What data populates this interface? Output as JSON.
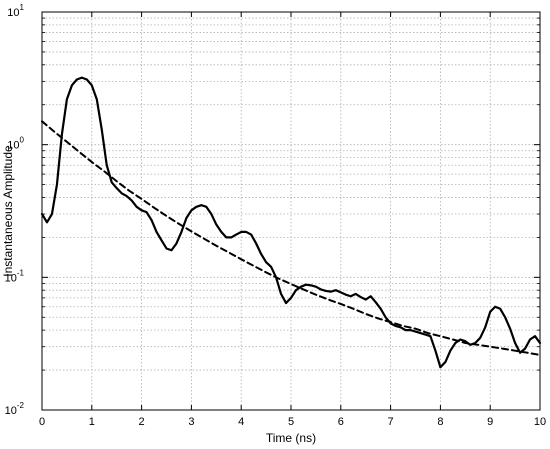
{
  "chart_data": {
    "type": "line",
    "xlabel": "Time (ns)",
    "ylabel": "Instantaneous Amplitude",
    "xlim": [
      0,
      10
    ],
    "ylim": [
      0.01,
      10
    ],
    "yscale": "log",
    "grid": true,
    "x_ticks": [
      0,
      1,
      2,
      3,
      4,
      5,
      6,
      7,
      8,
      9,
      10
    ],
    "y_ticks": [
      {
        "value": 0.01,
        "base": "10",
        "exp": "-2"
      },
      {
        "value": 0.1,
        "base": "10",
        "exp": "-1"
      },
      {
        "value": 1,
        "base": "10",
        "exp": "0"
      },
      {
        "value": 10,
        "base": "10",
        "exp": "1"
      }
    ],
    "series": [
      {
        "style": "solid",
        "x": [
          0,
          0.1,
          0.2,
          0.3,
          0.4,
          0.5,
          0.6,
          0.7,
          0.8,
          0.9,
          1.0,
          1.1,
          1.2,
          1.3,
          1.4,
          1.5,
          1.6,
          1.7,
          1.8,
          1.9,
          2.0,
          2.1,
          2.2,
          2.3,
          2.4,
          2.5,
          2.6,
          2.7,
          2.8,
          2.9,
          3.0,
          3.1,
          3.2,
          3.3,
          3.4,
          3.5,
          3.6,
          3.7,
          3.8,
          3.9,
          4.0,
          4.1,
          4.2,
          4.3,
          4.4,
          4.5,
          4.6,
          4.7,
          4.8,
          4.9,
          5.0,
          5.1,
          5.2,
          5.3,
          5.4,
          5.5,
          5.6,
          5.7,
          5.8,
          5.9,
          6.0,
          6.1,
          6.2,
          6.3,
          6.4,
          6.5,
          6.6,
          6.7,
          6.8,
          6.9,
          7.0,
          7.1,
          7.2,
          7.3,
          7.4,
          7.5,
          7.6,
          7.7,
          7.8,
          7.9,
          8.0,
          8.1,
          8.2,
          8.3,
          8.4,
          8.5,
          8.6,
          8.7,
          8.8,
          8.9,
          9.0,
          9.1,
          9.2,
          9.3,
          9.4,
          9.5,
          9.6,
          9.7,
          9.8,
          9.9,
          10.0
        ],
        "y": [
          0.3,
          0.26,
          0.3,
          0.5,
          1.2,
          2.2,
          2.8,
          3.1,
          3.2,
          3.1,
          2.8,
          2.2,
          1.3,
          0.7,
          0.52,
          0.47,
          0.43,
          0.41,
          0.38,
          0.34,
          0.32,
          0.31,
          0.27,
          0.22,
          0.19,
          0.165,
          0.16,
          0.18,
          0.22,
          0.28,
          0.32,
          0.34,
          0.35,
          0.34,
          0.3,
          0.25,
          0.22,
          0.2,
          0.2,
          0.21,
          0.22,
          0.22,
          0.21,
          0.18,
          0.15,
          0.13,
          0.12,
          0.1,
          0.075,
          0.064,
          0.07,
          0.08,
          0.085,
          0.088,
          0.087,
          0.085,
          0.081,
          0.079,
          0.078,
          0.08,
          0.077,
          0.074,
          0.072,
          0.075,
          0.071,
          0.068,
          0.072,
          0.065,
          0.058,
          0.05,
          0.045,
          0.043,
          0.042,
          0.04,
          0.04,
          0.039,
          0.038,
          0.037,
          0.036,
          0.028,
          0.021,
          0.023,
          0.028,
          0.032,
          0.034,
          0.033,
          0.031,
          0.032,
          0.035,
          0.042,
          0.055,
          0.06,
          0.058,
          0.05,
          0.041,
          0.032,
          0.027,
          0.029,
          0.034,
          0.036,
          0.032
        ]
      },
      {
        "style": "dashed",
        "x": [
          0,
          0.25,
          0.5,
          0.75,
          1.0,
          1.25,
          1.5,
          1.75,
          2.0,
          2.25,
          2.5,
          2.75,
          3.0,
          3.25,
          3.5,
          3.75,
          4.0,
          4.25,
          4.5,
          4.75,
          5.0,
          5.25,
          5.5,
          5.75,
          6.0,
          6.25,
          6.5,
          6.75,
          7.0,
          7.25,
          7.5,
          7.75,
          8.0,
          8.25,
          8.5,
          8.75,
          9.0,
          9.25,
          9.5,
          9.75,
          10.0
        ],
        "y": [
          1.5,
          1.25,
          1.05,
          0.88,
          0.74,
          0.63,
          0.53,
          0.45,
          0.39,
          0.335,
          0.29,
          0.253,
          0.222,
          0.196,
          0.173,
          0.154,
          0.137,
          0.122,
          0.109,
          0.098,
          0.089,
          0.081,
          0.074,
          0.068,
          0.063,
          0.058,
          0.053,
          0.049,
          0.046,
          0.043,
          0.041,
          0.038,
          0.036,
          0.034,
          0.032,
          0.031,
          0.03,
          0.029,
          0.028,
          0.027,
          0.026
        ]
      }
    ]
  }
}
